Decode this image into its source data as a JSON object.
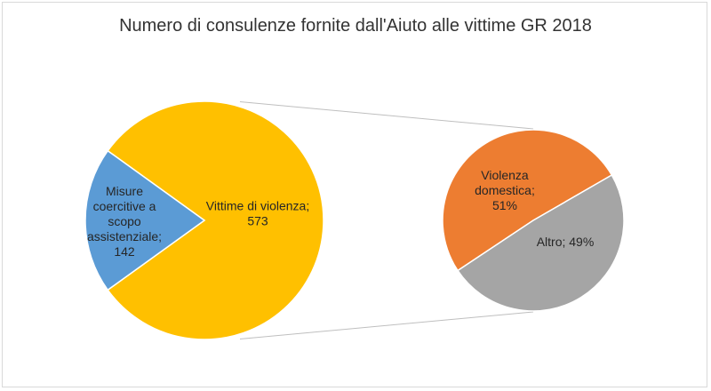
{
  "chart_data": {
    "type": "pie",
    "title": "Numero di consulenze fornite dall'Aiuto alle vittime GR 2018",
    "main_pie": {
      "slices": [
        {
          "label": "Vittime di violenza; 573",
          "value": 573,
          "color": "#FFC000"
        },
        {
          "label": "Misure coercitive a scopo assistenziale; 142",
          "value": 142,
          "color": "#5B9BD5"
        }
      ]
    },
    "secondary_pie": {
      "expands": "Vittime di violenza",
      "slices": [
        {
          "label": "Violenza domestica; 51%",
          "value": 51,
          "color": "#ED7D31"
        },
        {
          "label": "Altro; 49%",
          "value": 49,
          "color": "#A5A5A5"
        }
      ]
    },
    "legend": "none"
  },
  "labels": {
    "main_0": [
      "Vittime di violenza;",
      "573"
    ],
    "main_1": [
      "Misure",
      "coercitive a",
      "scopo",
      "assistenziale;",
      "142"
    ],
    "sec_0": [
      "Violenza",
      "domestica;",
      "51%"
    ],
    "sec_1": [
      "Altro; 49%"
    ]
  }
}
